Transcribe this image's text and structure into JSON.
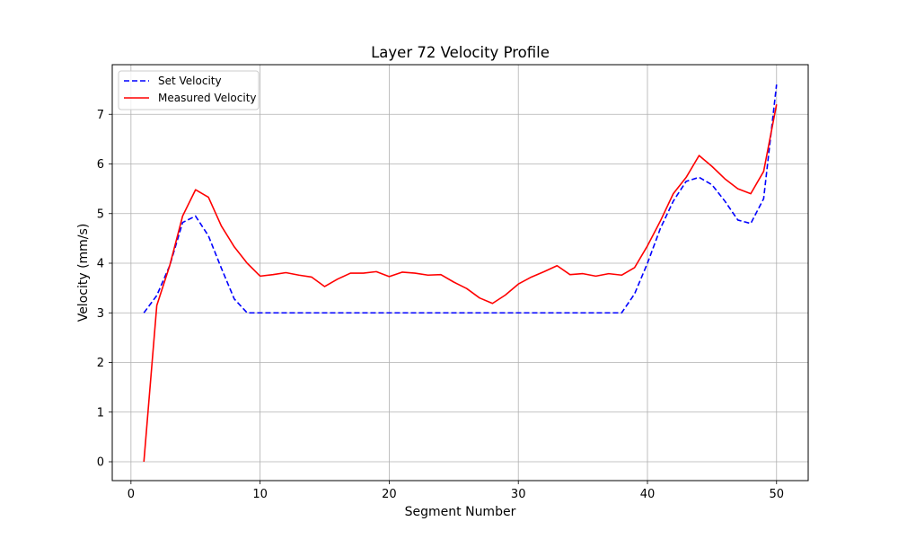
{
  "chart_data": {
    "type": "line",
    "title": "Layer 72 Velocity Profile",
    "xlabel": "Segment Number",
    "ylabel": "Velocity (mm/s)",
    "xlim": [
      -1.45,
      52.45
    ],
    "ylim": [
      -0.38,
      8.0
    ],
    "xticks": [
      0,
      10,
      20,
      30,
      40,
      50
    ],
    "yticks": [
      0,
      1,
      2,
      3,
      4,
      5,
      6,
      7
    ],
    "grid": true,
    "legend_position": "upper-left",
    "x": [
      1,
      2,
      3,
      4,
      5,
      6,
      7,
      8,
      9,
      10,
      11,
      12,
      13,
      14,
      15,
      16,
      17,
      18,
      19,
      20,
      21,
      22,
      23,
      24,
      25,
      26,
      27,
      28,
      29,
      30,
      31,
      32,
      33,
      34,
      35,
      36,
      37,
      38,
      39,
      40,
      41,
      42,
      43,
      44,
      45,
      46,
      47,
      48,
      49,
      50
    ],
    "series": [
      {
        "name": "Set Velocity",
        "color": "#0000ff",
        "style": "dashed",
        "values": [
          3.0,
          3.35,
          3.95,
          4.82,
          4.95,
          4.55,
          3.9,
          3.28,
          3.0,
          3.0,
          3.0,
          3.0,
          3.0,
          3.0,
          3.0,
          3.0,
          3.0,
          3.0,
          3.0,
          3.0,
          3.0,
          3.0,
          3.0,
          3.0,
          3.0,
          3.0,
          3.0,
          3.0,
          3.0,
          3.0,
          3.0,
          3.0,
          3.0,
          3.0,
          3.0,
          3.0,
          3.0,
          3.0,
          3.38,
          4.0,
          4.7,
          5.25,
          5.65,
          5.73,
          5.58,
          5.25,
          4.87,
          4.8,
          5.3,
          7.6
        ]
      },
      {
        "name": "Measured Velocity",
        "color": "#ff0000",
        "style": "solid",
        "values": [
          0.0,
          3.15,
          3.95,
          4.95,
          5.48,
          5.33,
          4.75,
          4.33,
          4.0,
          3.74,
          3.77,
          3.81,
          3.76,
          3.72,
          3.53,
          3.68,
          3.8,
          3.8,
          3.83,
          3.73,
          3.82,
          3.8,
          3.76,
          3.77,
          3.62,
          3.49,
          3.3,
          3.19,
          3.36,
          3.58,
          3.72,
          3.83,
          3.95,
          3.77,
          3.79,
          3.74,
          3.79,
          3.76,
          3.91,
          4.35,
          4.85,
          5.4,
          5.73,
          6.17,
          5.95,
          5.7,
          5.5,
          5.4,
          5.85,
          7.2
        ]
      }
    ]
  }
}
